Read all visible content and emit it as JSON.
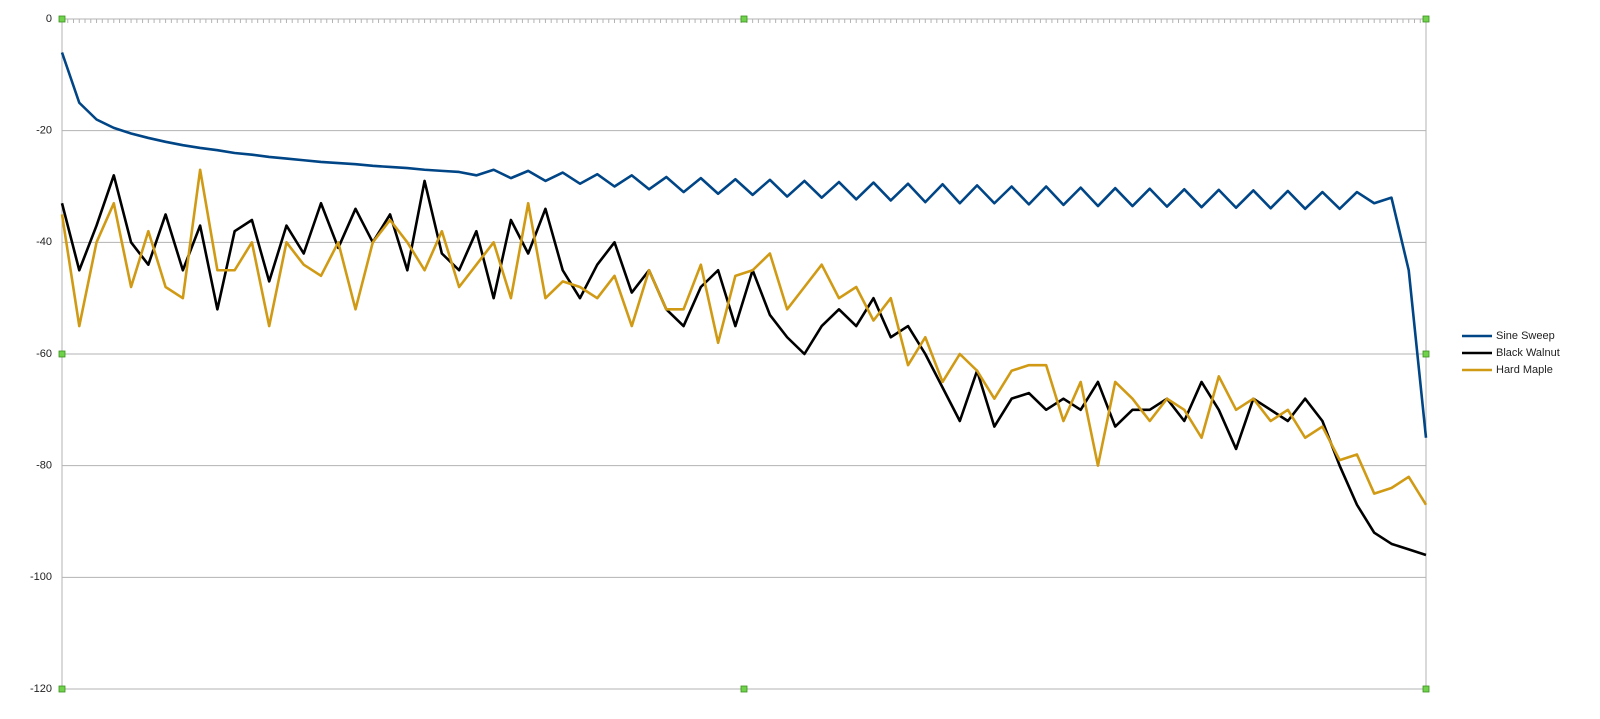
{
  "chart_data": {
    "type": "line",
    "ylim": [
      -120,
      0
    ],
    "yticks": [
      0,
      -20,
      -40,
      -60,
      -80,
      -100,
      -120
    ],
    "grid": true,
    "legend": "right",
    "series": [
      {
        "name": "Sine Sweep",
        "color": "#004586",
        "values": [
          -6,
          -15,
          -18,
          -19.5,
          -20.5,
          -21.3,
          -22,
          -22.6,
          -23.1,
          -23.5,
          -24,
          -24.3,
          -24.7,
          -25,
          -25.3,
          -25.6,
          -25.8,
          -26,
          -26.3,
          -26.5,
          -26.7,
          -27,
          -27.2,
          -27.4,
          -28,
          -27,
          -28.5,
          -27.2,
          -29,
          -27.5,
          -29.5,
          -27.8,
          -30,
          -28,
          -30.5,
          -28.3,
          -31,
          -28.5,
          -31.3,
          -28.7,
          -31.5,
          -28.8,
          -31.8,
          -29,
          -32,
          -29.2,
          -32.3,
          -29.3,
          -32.5,
          -29.5,
          -32.8,
          -29.6,
          -33,
          -29.8,
          -33,
          -30,
          -33.2,
          -30,
          -33.3,
          -30.2,
          -33.5,
          -30.3,
          -33.5,
          -30.4,
          -33.6,
          -30.5,
          -33.7,
          -30.6,
          -33.8,
          -30.7,
          -33.9,
          -30.8,
          -34,
          -31,
          -34,
          -31,
          -33,
          -32,
          -45,
          -75
        ]
      },
      {
        "name": "Black Walnut",
        "color": "#000000",
        "values": [
          -33,
          -45,
          -37,
          -28,
          -40,
          -44,
          -35,
          -45,
          -37,
          -52,
          -38,
          -36,
          -47,
          -37,
          -42,
          -33,
          -41,
          -34,
          -40,
          -35,
          -45,
          -29,
          -42,
          -45,
          -38,
          -50,
          -36,
          -42,
          -34,
          -45,
          -50,
          -44,
          -40,
          -49,
          -45,
          -52,
          -55,
          -48,
          -45,
          -55,
          -45,
          -53,
          -57,
          -60,
          -55,
          -52,
          -55,
          -50,
          -57,
          -55,
          -60,
          -66,
          -72,
          -63,
          -73,
          -68,
          -67,
          -70,
          -68,
          -70,
          -65,
          -73,
          -70,
          -70,
          -68,
          -72,
          -65,
          -70,
          -77,
          -68,
          -70,
          -72,
          -68,
          -72,
          -80,
          -87,
          -92,
          -94,
          -95,
          -96
        ]
      },
      {
        "name": "Hard Maple",
        "color": "#d09a14",
        "values": [
          -35,
          -55,
          -40,
          -33,
          -48,
          -38,
          -48,
          -50,
          -27,
          -45,
          -45,
          -40,
          -55,
          -40,
          -44,
          -46,
          -40,
          -52,
          -40,
          -36,
          -40,
          -45,
          -38,
          -48,
          -44,
          -40,
          -50,
          -33,
          -50,
          -47,
          -48,
          -50,
          -46,
          -55,
          -45,
          -52,
          -52,
          -44,
          -58,
          -46,
          -45,
          -42,
          -52,
          -48,
          -44,
          -50,
          -48,
          -54,
          -50,
          -62,
          -57,
          -65,
          -60,
          -63,
          -68,
          -63,
          -62,
          -62,
          -72,
          -65,
          -80,
          -65,
          -68,
          -72,
          -68,
          -70,
          -75,
          -64,
          -70,
          -68,
          -72,
          -70,
          -75,
          -73,
          -79,
          -78,
          -85,
          -84,
          -82,
          -87
        ]
      }
    ]
  }
}
